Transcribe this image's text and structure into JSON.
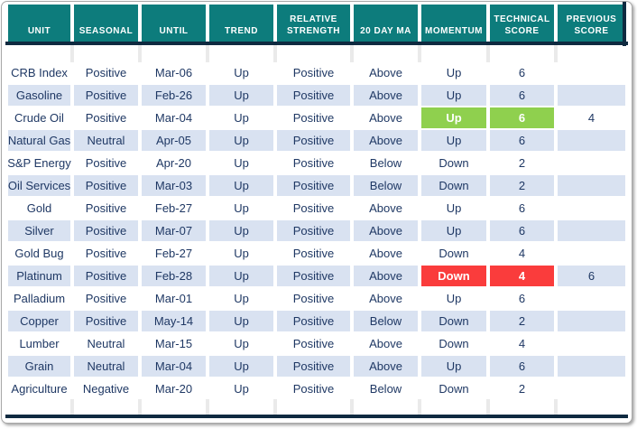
{
  "colors": {
    "header_teal": "#0D7C7C",
    "dark_border": "#0F2A40",
    "row_stripe": "#D9E2F1",
    "text_navy": "#1F3864",
    "highlight_green": "#8FD04E",
    "highlight_red": "#FA3C3C"
  },
  "table": {
    "columns": [
      {
        "id": "unit",
        "label": "UNIT"
      },
      {
        "id": "seasonal",
        "label": "SEASONAL"
      },
      {
        "id": "until",
        "label": "UNTIL"
      },
      {
        "id": "trend",
        "label": "TREND"
      },
      {
        "id": "relative_strength",
        "label": "RELATIVE STRENGTH"
      },
      {
        "id": "ma_20",
        "label": "20 DAY MA"
      },
      {
        "id": "momentum",
        "label": "MOMENTUM"
      },
      {
        "id": "technical_score",
        "label": "TECHNICAL SCORE"
      },
      {
        "id": "previous_score",
        "label": "PREVIOUS SCORE"
      }
    ],
    "rows": [
      {
        "unit": "CRB Index",
        "seasonal": "Positive",
        "until": "Mar-06",
        "trend": "Up",
        "relative_strength": "Positive",
        "ma_20": "Above",
        "momentum": "Up",
        "technical_score": "6",
        "previous_score": "",
        "highlight": "none"
      },
      {
        "unit": "Gasoline",
        "seasonal": "Positive",
        "until": "Feb-26",
        "trend": "Up",
        "relative_strength": "Positive",
        "ma_20": "Above",
        "momentum": "Up",
        "technical_score": "6",
        "previous_score": "",
        "highlight": "none"
      },
      {
        "unit": "Crude Oil",
        "seasonal": "Positive",
        "until": "Mar-04",
        "trend": "Up",
        "relative_strength": "Positive",
        "ma_20": "Above",
        "momentum": "Up",
        "technical_score": "6",
        "previous_score": "4",
        "highlight": "green"
      },
      {
        "unit": "Natural Gas",
        "seasonal": "Neutral",
        "until": "Apr-05",
        "trend": "Up",
        "relative_strength": "Positive",
        "ma_20": "Above",
        "momentum": "Up",
        "technical_score": "6",
        "previous_score": "",
        "highlight": "none"
      },
      {
        "unit": "S&P Energy",
        "seasonal": "Positive",
        "until": "Apr-20",
        "trend": "Up",
        "relative_strength": "Positive",
        "ma_20": "Below",
        "momentum": "Down",
        "technical_score": "2",
        "previous_score": "",
        "highlight": "none"
      },
      {
        "unit": "Oil Services",
        "seasonal": "Positive",
        "until": "Mar-03",
        "trend": "Up",
        "relative_strength": "Positive",
        "ma_20": "Below",
        "momentum": "Down",
        "technical_score": "2",
        "previous_score": "",
        "highlight": "none"
      },
      {
        "unit": "Gold",
        "seasonal": "Positive",
        "until": "Feb-27",
        "trend": "Up",
        "relative_strength": "Positive",
        "ma_20": "Above",
        "momentum": "Up",
        "technical_score": "6",
        "previous_score": "",
        "highlight": "none"
      },
      {
        "unit": "Silver",
        "seasonal": "Positive",
        "until": "Mar-07",
        "trend": "Up",
        "relative_strength": "Positive",
        "ma_20": "Above",
        "momentum": "Up",
        "technical_score": "6",
        "previous_score": "",
        "highlight": "none"
      },
      {
        "unit": "Gold Bug",
        "seasonal": "Positive",
        "until": "Feb-27",
        "trend": "Up",
        "relative_strength": "Positive",
        "ma_20": "Above",
        "momentum": "Down",
        "technical_score": "4",
        "previous_score": "",
        "highlight": "none"
      },
      {
        "unit": "Platinum",
        "seasonal": "Positive",
        "until": "Feb-28",
        "trend": "Up",
        "relative_strength": "Positive",
        "ma_20": "Above",
        "momentum": "Down",
        "technical_score": "4",
        "previous_score": "6",
        "highlight": "red"
      },
      {
        "unit": "Palladium",
        "seasonal": "Positive",
        "until": "Mar-01",
        "trend": "Up",
        "relative_strength": "Positive",
        "ma_20": "Above",
        "momentum": "Up",
        "technical_score": "6",
        "previous_score": "",
        "highlight": "none"
      },
      {
        "unit": "Copper",
        "seasonal": "Positive",
        "until": "May-14",
        "trend": "Up",
        "relative_strength": "Positive",
        "ma_20": "Below",
        "momentum": "Down",
        "technical_score": "2",
        "previous_score": "",
        "highlight": "none"
      },
      {
        "unit": "Lumber",
        "seasonal": "Neutral",
        "until": "Mar-15",
        "trend": "Up",
        "relative_strength": "Positive",
        "ma_20": "Above",
        "momentum": "Down",
        "technical_score": "4",
        "previous_score": "",
        "highlight": "none"
      },
      {
        "unit": "Grain",
        "seasonal": "Neutral",
        "until": "Mar-04",
        "trend": "Up",
        "relative_strength": "Positive",
        "ma_20": "Above",
        "momentum": "Up",
        "technical_score": "6",
        "previous_score": "",
        "highlight": "none"
      },
      {
        "unit": "Agriculture",
        "seasonal": "Negative",
        "until": "Mar-20",
        "trend": "Up",
        "relative_strength": "Positive",
        "ma_20": "Below",
        "momentum": "Down",
        "technical_score": "2",
        "previous_score": "",
        "highlight": "none"
      }
    ]
  }
}
